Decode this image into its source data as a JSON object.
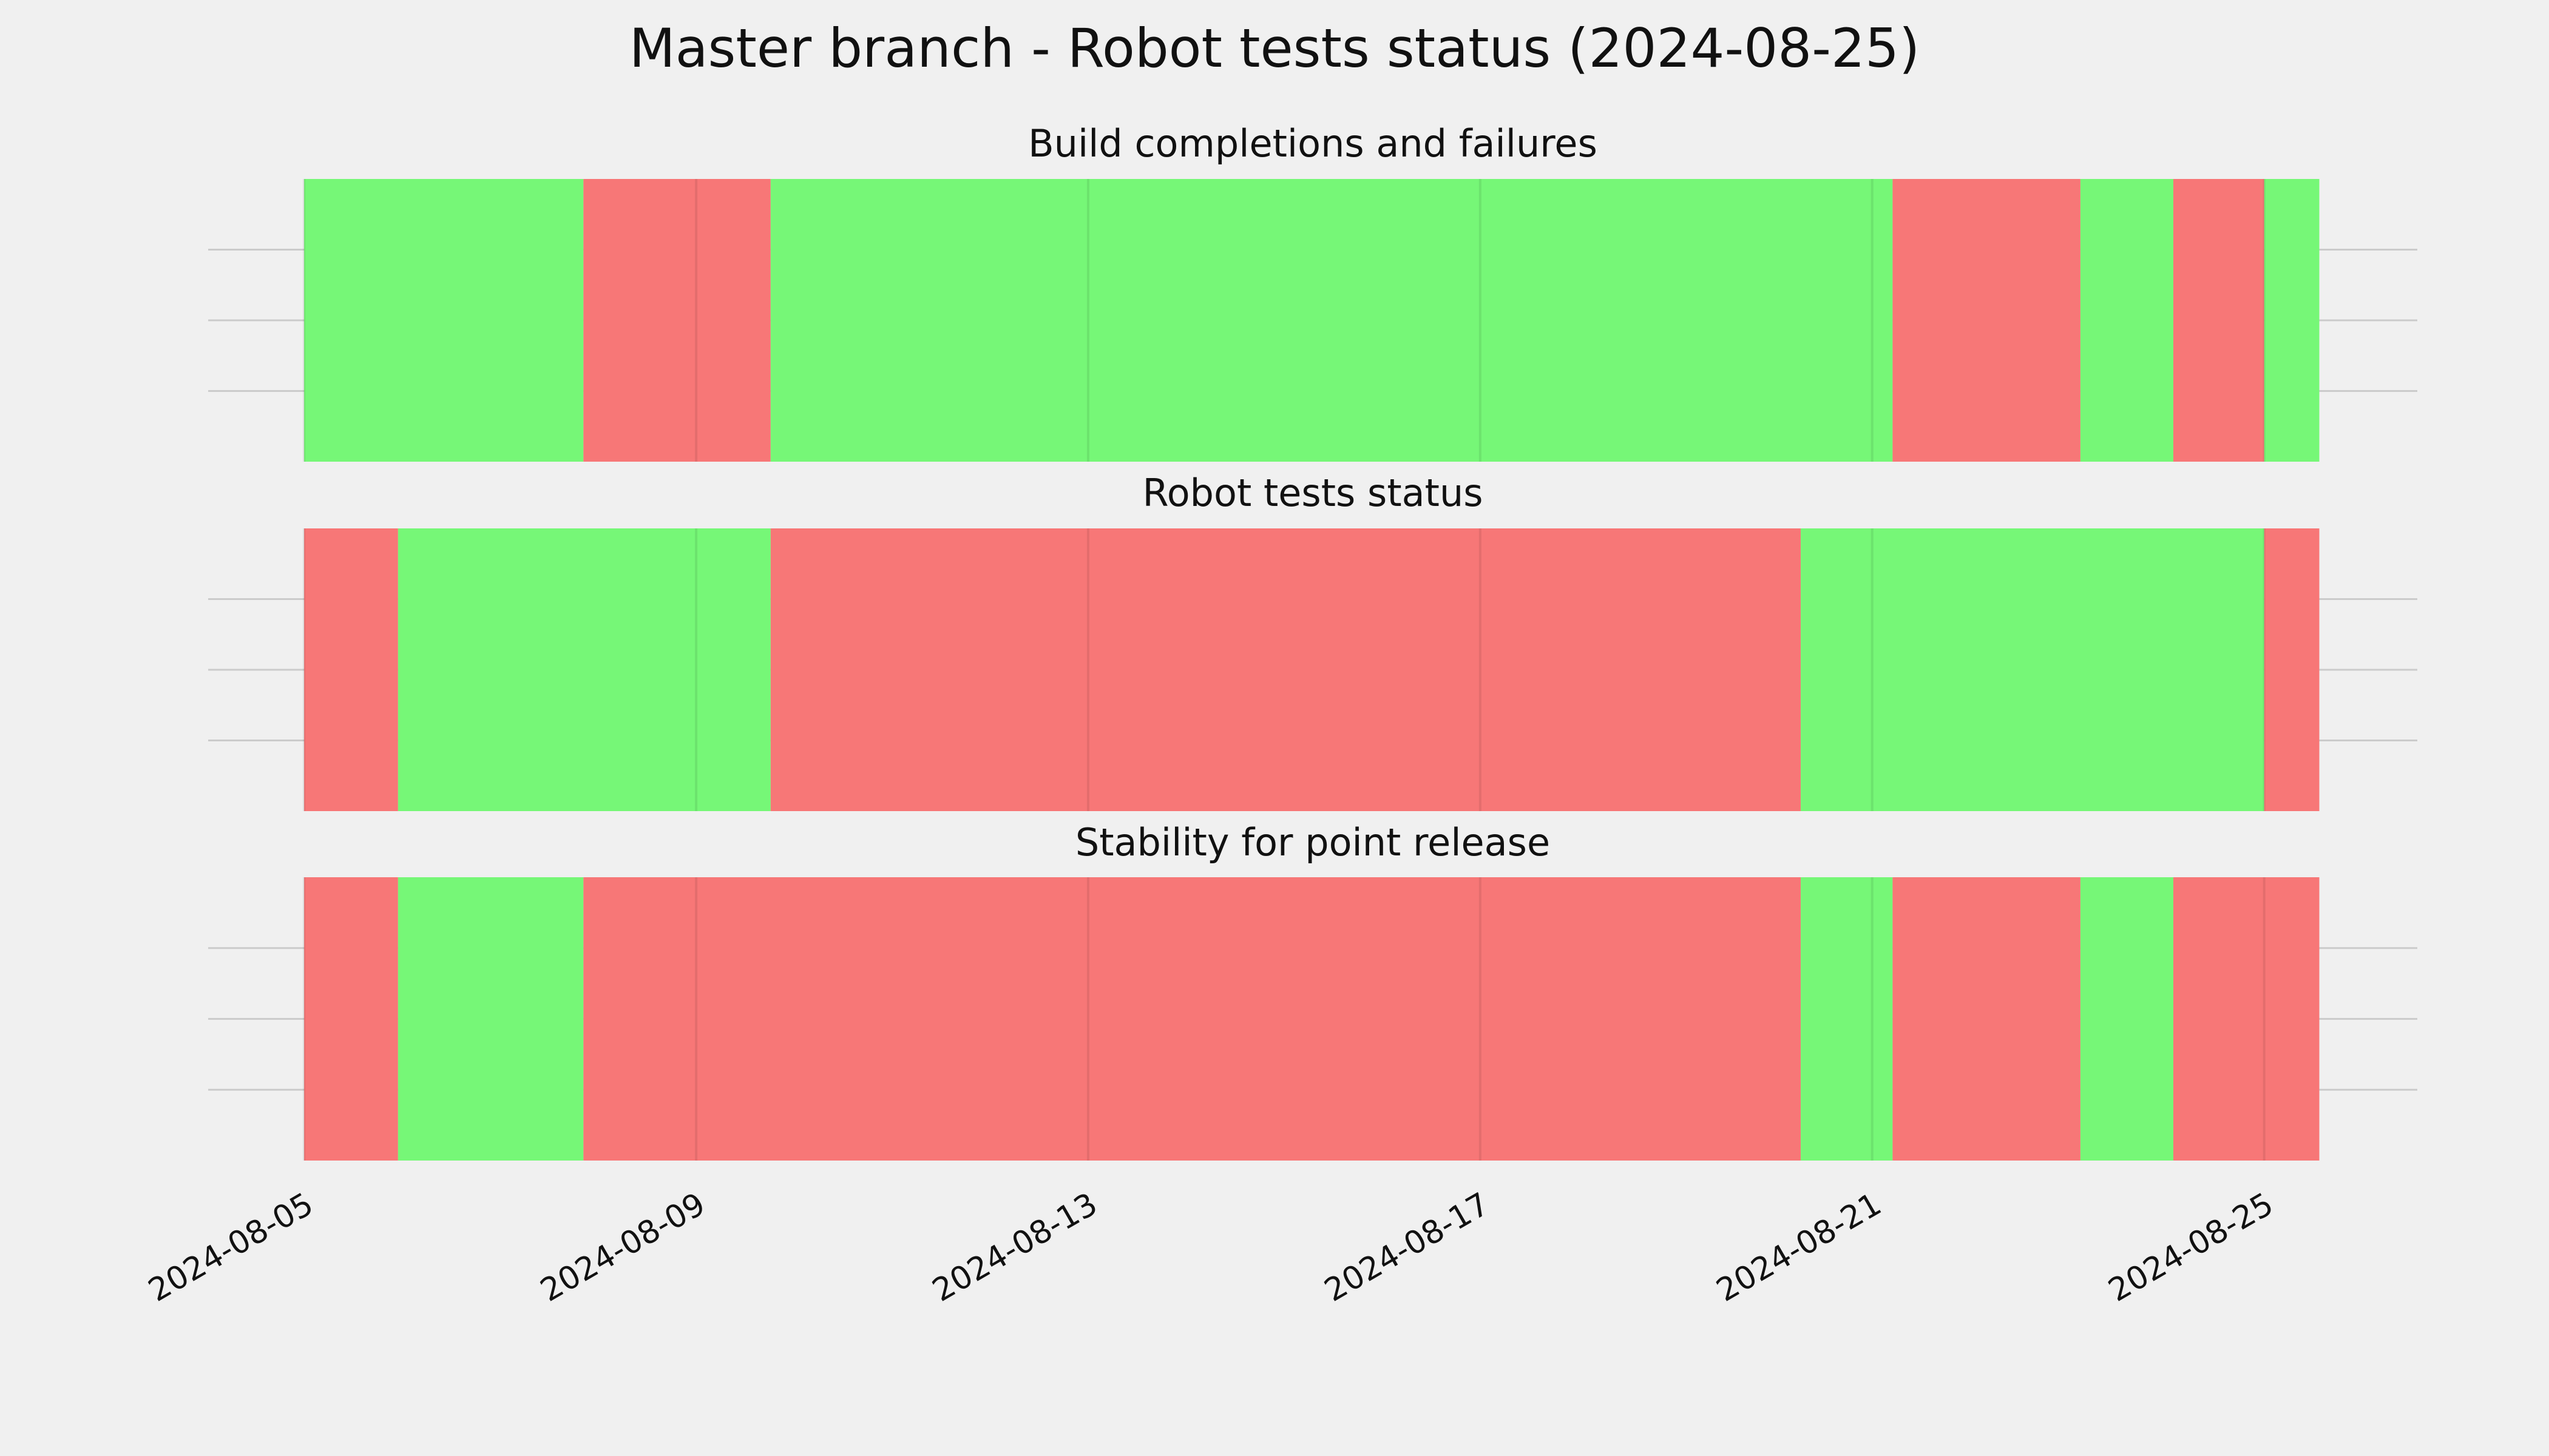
{
  "title": "Master branch - Robot tests status (2024-08-25)",
  "chart_data": [
    {
      "type": "timeline",
      "title": "Build completions and failures",
      "xlim": [
        "2024-08-04T00:30",
        "2024-08-26T13:30"
      ],
      "xticks": [
        "2024-08-05",
        "2024-08-09",
        "2024-08-13",
        "2024-08-17",
        "2024-08-21",
        "2024-08-25"
      ],
      "segments": [
        {
          "start": "2024-08-05T00:00",
          "end": "2024-08-07T20:24",
          "color": "#76f777"
        },
        {
          "start": "2024-08-07T20:24",
          "end": "2024-08-09T18:15",
          "color": "#f77777"
        },
        {
          "start": "2024-08-09T18:15",
          "end": "2024-08-21T05:00",
          "color": "#76f777"
        },
        {
          "start": "2024-08-21T05:00",
          "end": "2024-08-23T03:00",
          "color": "#f77777"
        },
        {
          "start": "2024-08-23T03:00",
          "end": "2024-08-24T01:45",
          "color": "#76f777"
        },
        {
          "start": "2024-08-24T01:45",
          "end": "2024-08-25T00:00",
          "color": "#f77777"
        },
        {
          "start": "2024-08-25T00:00",
          "end": "2024-08-25T13:30",
          "color": "#76f777"
        }
      ]
    },
    {
      "type": "timeline",
      "title": "Robot tests status",
      "xlim": [
        "2024-08-04T00:30",
        "2024-08-26T13:30"
      ],
      "xticks": [
        "2024-08-05",
        "2024-08-09",
        "2024-08-13",
        "2024-08-17",
        "2024-08-21",
        "2024-08-25"
      ],
      "segments": [
        {
          "start": "2024-08-05T00:00",
          "end": "2024-08-05T23:00",
          "color": "#f77777"
        },
        {
          "start": "2024-08-05T23:00",
          "end": "2024-08-09T18:15",
          "color": "#76f777"
        },
        {
          "start": "2024-08-09T18:15",
          "end": "2024-08-20T06:30",
          "color": "#f77777"
        },
        {
          "start": "2024-08-20T06:30",
          "end": "2024-08-25T00:00",
          "color": "#76f777"
        },
        {
          "start": "2024-08-25T00:00",
          "end": "2024-08-25T13:30",
          "color": "#f77777"
        }
      ]
    },
    {
      "type": "timeline",
      "title": "Stability for point release",
      "xlim": [
        "2024-08-04T00:30",
        "2024-08-26T13:30"
      ],
      "xticks": [
        "2024-08-05",
        "2024-08-09",
        "2024-08-13",
        "2024-08-17",
        "2024-08-21",
        "2024-08-25"
      ],
      "segments": [
        {
          "start": "2024-08-05T00:00",
          "end": "2024-08-05T23:00",
          "color": "#f77777"
        },
        {
          "start": "2024-08-05T23:00",
          "end": "2024-08-07T20:24",
          "color": "#76f777"
        },
        {
          "start": "2024-08-07T20:24",
          "end": "2024-08-20T06:30",
          "color": "#f77777"
        },
        {
          "start": "2024-08-20T06:30",
          "end": "2024-08-21T05:00",
          "color": "#76f777"
        },
        {
          "start": "2024-08-21T05:00",
          "end": "2024-08-23T03:00",
          "color": "#f77777"
        },
        {
          "start": "2024-08-23T03:00",
          "end": "2024-08-24T01:45",
          "color": "#76f777"
        },
        {
          "start": "2024-08-24T01:45",
          "end": "2024-08-25T13:30",
          "color": "#f77777"
        }
      ]
    }
  ]
}
